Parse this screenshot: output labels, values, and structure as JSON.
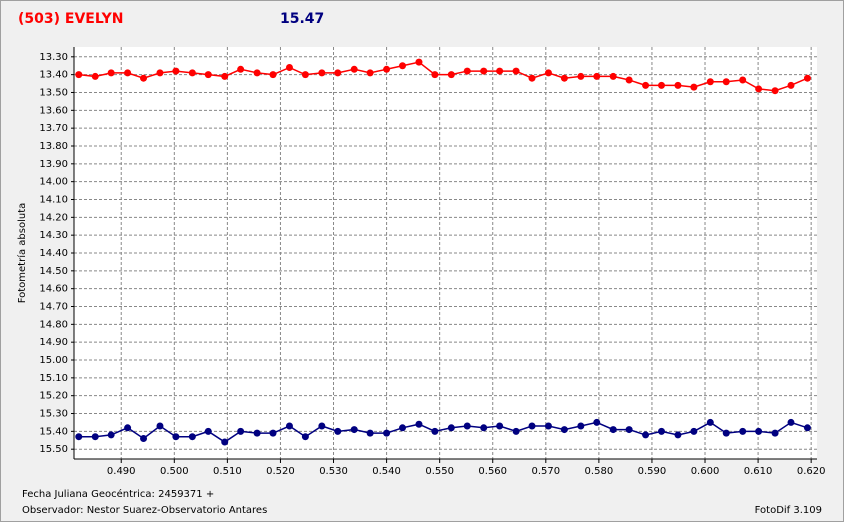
{
  "chart_data": {
    "type": "line",
    "title": "(503) EVELYN",
    "annotation": "15.47",
    "y_label": "Fotometría absoluta",
    "footer_left": [
      "Fecha Juliana Geocéntrica: 2459371 +",
      "Observador: Nestor Suarez-Observatorio Antares"
    ],
    "footer_right": "FotoDif 3.109",
    "x": [
      0.482,
      0.4851,
      0.4881,
      0.4912,
      0.4942,
      0.4973,
      0.5003,
      0.5034,
      0.5064,
      0.5095,
      0.5125,
      0.5156,
      0.5186,
      0.5217,
      0.5247,
      0.5278,
      0.5308,
      0.5339,
      0.5369,
      0.54,
      0.543,
      0.5461,
      0.5491,
      0.5522,
      0.5552,
      0.5583,
      0.5613,
      0.5644,
      0.5674,
      0.5705,
      0.5735,
      0.5766,
      0.5796,
      0.5827,
      0.5857,
      0.5888,
      0.5918,
      0.5949,
      0.5979,
      0.601,
      0.604,
      0.6071,
      0.6101,
      0.6132,
      0.6162,
      0.6193
    ],
    "series": [
      {
        "color": "#ff0000",
        "values": [
          13.4,
          13.41,
          13.39,
          13.39,
          13.42,
          13.39,
          13.38,
          13.39,
          13.4,
          13.41,
          13.37,
          13.39,
          13.4,
          13.36,
          13.4,
          13.39,
          13.39,
          13.37,
          13.39,
          13.37,
          13.35,
          13.33,
          13.4,
          13.4,
          13.38,
          13.38,
          13.38,
          13.38,
          13.42,
          13.39,
          13.42,
          13.41,
          13.41,
          13.41,
          13.43,
          13.46,
          13.46,
          13.46,
          13.47,
          13.44,
          13.44,
          13.43,
          13.48,
          13.49,
          13.46,
          13.42
        ]
      },
      {
        "color": "#000080",
        "values": [
          15.43,
          15.43,
          15.42,
          15.38,
          15.44,
          15.37,
          15.43,
          15.43,
          15.4,
          15.46,
          15.4,
          15.41,
          15.41,
          15.37,
          15.43,
          15.37,
          15.4,
          15.39,
          15.41,
          15.41,
          15.38,
          15.36,
          15.4,
          15.38,
          15.37,
          15.38,
          15.37,
          15.4,
          15.37,
          15.37,
          15.39,
          15.37,
          15.35,
          15.39,
          15.39,
          15.42,
          15.4,
          15.42,
          15.4,
          15.35,
          15.41,
          15.4,
          15.4,
          15.41,
          15.35,
          15.38
        ]
      }
    ],
    "xlim": [
      0.4811,
      0.6211
    ],
    "ylim": [
      15.555,
      13.245
    ],
    "xticks": [
      {
        "value": 0.49,
        "label": "0.490"
      },
      {
        "value": 0.5,
        "label": "0.500"
      },
      {
        "value": 0.51,
        "label": "0.510"
      },
      {
        "value": 0.52,
        "label": "0.520"
      },
      {
        "value": 0.53,
        "label": "0.530"
      },
      {
        "value": 0.54,
        "label": "0.540"
      },
      {
        "value": 0.55,
        "label": "0.550"
      },
      {
        "value": 0.56,
        "label": "0.560"
      },
      {
        "value": 0.57,
        "label": "0.570"
      },
      {
        "value": 0.58,
        "label": "0.580"
      },
      {
        "value": 0.59,
        "label": "0.590"
      },
      {
        "value": 0.6,
        "label": "0.600"
      },
      {
        "value": 0.61,
        "label": "0.610"
      },
      {
        "value": 0.62,
        "label": "0.620"
      }
    ],
    "yticks": [
      {
        "value": 13.3,
        "label": "13.30"
      },
      {
        "value": 13.4,
        "label": "13.40"
      },
      {
        "value": 13.5,
        "label": "13.50"
      },
      {
        "value": 13.6,
        "label": "13.60"
      },
      {
        "value": 13.7,
        "label": "13.70"
      },
      {
        "value": 13.8,
        "label": "13.80"
      },
      {
        "value": 13.9,
        "label": "13.90"
      },
      {
        "value": 14.0,
        "label": "14.00"
      },
      {
        "value": 14.1,
        "label": "14.10"
      },
      {
        "value": 14.2,
        "label": "14.20"
      },
      {
        "value": 14.3,
        "label": "14.30"
      },
      {
        "value": 14.4,
        "label": "14.40"
      },
      {
        "value": 14.5,
        "label": "14.50"
      },
      {
        "value": 14.6,
        "label": "14.60"
      },
      {
        "value": 14.7,
        "label": "14.70"
      },
      {
        "value": 14.8,
        "label": "14.80"
      },
      {
        "value": 14.9,
        "label": "14.90"
      },
      {
        "value": 15.0,
        "label": "15.00"
      },
      {
        "value": 15.1,
        "label": "15.10"
      },
      {
        "value": 15.2,
        "label": "15.20"
      },
      {
        "value": 15.3,
        "label": "15.30"
      },
      {
        "value": 15.4,
        "label": "15.40"
      },
      {
        "value": 15.5,
        "label": "15.50"
      }
    ],
    "grid": true
  }
}
